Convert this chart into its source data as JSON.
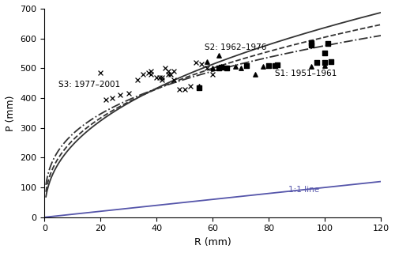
{
  "title": "",
  "xlabel": "R (mm)",
  "ylabel": "P (mm)",
  "xlim": [
    0,
    120
  ],
  "ylim": [
    0,
    700
  ],
  "xticks": [
    0,
    20,
    40,
    60,
    80,
    100,
    120
  ],
  "yticks": [
    0,
    100,
    200,
    300,
    400,
    500,
    600,
    700
  ],
  "one_to_one_color": "#5555aa",
  "curve_color": "#333333",
  "s1_label": "S1: 1951–1961",
  "s2_label": "S2: 1962–1976",
  "s3_label": "S3: 1977–2001",
  "line_label": "1:1 line",
  "s1_scatter": [
    [
      55,
      435
    ],
    [
      62,
      502
    ],
    [
      63,
      503
    ],
    [
      65,
      500
    ],
    [
      72,
      510
    ],
    [
      80,
      510
    ],
    [
      82,
      510
    ],
    [
      83,
      512
    ],
    [
      95,
      577
    ],
    [
      95,
      585
    ],
    [
      97,
      520
    ],
    [
      100,
      550
    ],
    [
      100,
      520
    ],
    [
      101,
      582
    ],
    [
      102,
      521
    ]
  ],
  "s2_scatter": [
    [
      55,
      440
    ],
    [
      58,
      522
    ],
    [
      60,
      500
    ],
    [
      62,
      542
    ],
    [
      63,
      505
    ],
    [
      65,
      500
    ],
    [
      68,
      505
    ],
    [
      70,
      500
    ],
    [
      75,
      480
    ],
    [
      78,
      505
    ],
    [
      80,
      510
    ],
    [
      82,
      510
    ],
    [
      95,
      505
    ],
    [
      100,
      510
    ]
  ],
  "s3_scatter": [
    [
      20,
      486
    ],
    [
      22,
      395
    ],
    [
      24,
      400
    ],
    [
      27,
      410
    ],
    [
      30,
      415
    ],
    [
      33,
      460
    ],
    [
      35,
      480
    ],
    [
      37,
      485
    ],
    [
      38,
      490
    ],
    [
      38,
      480
    ],
    [
      40,
      470
    ],
    [
      41,
      470
    ],
    [
      42,
      470
    ],
    [
      42,
      460
    ],
    [
      43,
      500
    ],
    [
      44,
      490
    ],
    [
      44,
      480
    ],
    [
      45,
      480
    ],
    [
      46,
      490
    ],
    [
      46,
      460
    ],
    [
      48,
      430
    ],
    [
      50,
      430
    ],
    [
      52,
      440
    ],
    [
      54,
      520
    ],
    [
      55,
      435
    ],
    [
      56,
      515
    ],
    [
      58,
      500
    ],
    [
      60,
      480
    ]
  ],
  "s1_curve": {
    "a": 92.0,
    "b": 0.42
  },
  "s2_curve": {
    "a": 110.0,
    "b": 0.37
  },
  "s3_curve": {
    "a": 135.0,
    "b": 0.315
  },
  "background_color": "#ffffff"
}
